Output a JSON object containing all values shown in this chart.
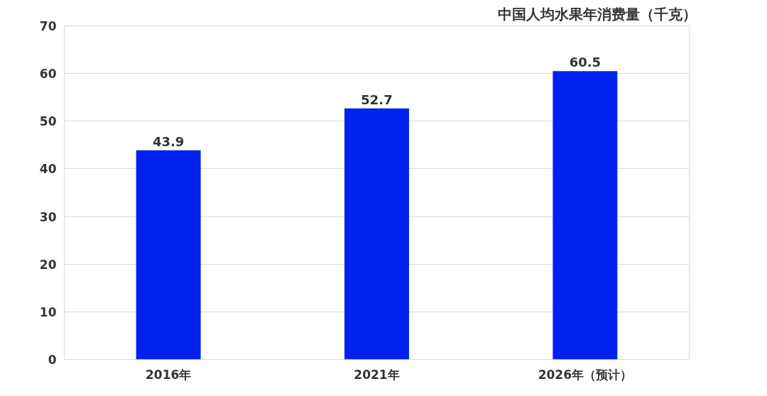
{
  "chart_data": {
    "type": "bar",
    "title": "中国人均水果年消费量（千克）",
    "categories": [
      "2016年",
      "2021年",
      "2026年（预计）"
    ],
    "values": [
      43.9,
      52.7,
      60.5
    ],
    "color": "#0022ee",
    "ylim": [
      0,
      70
    ],
    "yticks": [
      0,
      10,
      20,
      30,
      40,
      50,
      60,
      70
    ],
    "grid": "y",
    "data_labels": true
  }
}
